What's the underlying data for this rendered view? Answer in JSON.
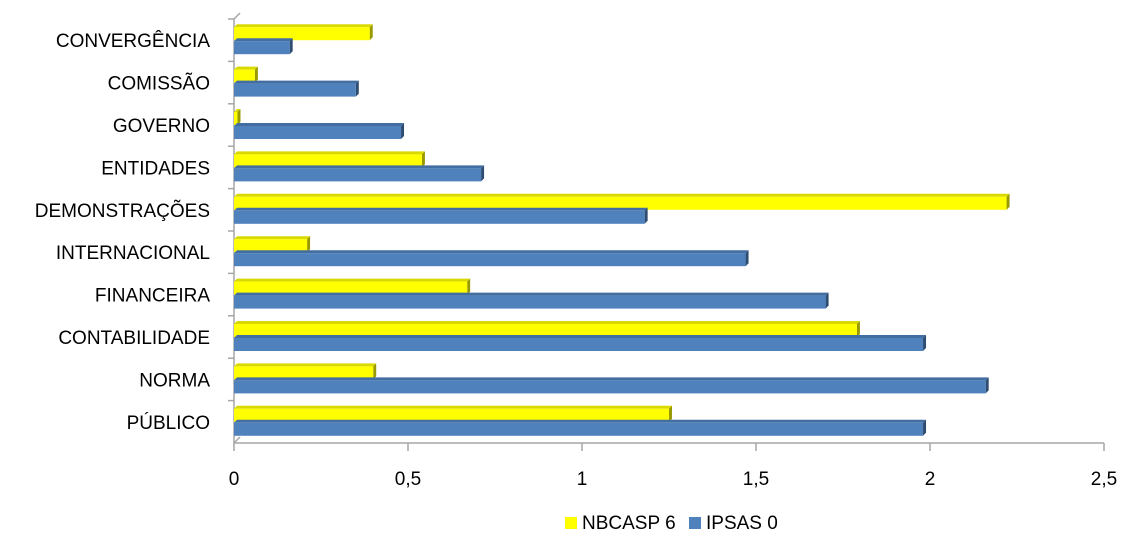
{
  "chart_data": {
    "type": "bar",
    "orientation": "horizontal",
    "title": "",
    "xlabel": "",
    "ylabel": "",
    "xlim": [
      0,
      2.5
    ],
    "x_ticks": [
      "0",
      "0,5",
      "1",
      "1,5",
      "2",
      "2,5"
    ],
    "x_tick_values": [
      0,
      0.5,
      1,
      1.5,
      2,
      2.5
    ],
    "grid": false,
    "legend_position": "bottom",
    "categories": [
      "CONVERGÊNCIA",
      "COMISSÃO",
      "GOVERNO",
      "ENTIDADES",
      "DEMONSTRAÇÕES",
      "INTERNACIONAL",
      "FINANCEIRA",
      "CONTABILIDADE",
      "NORMA",
      "PÚBLICO"
    ],
    "series": [
      {
        "name": "NBCASP 6",
        "color": "#ffff00",
        "values": [
          0.39,
          0.06,
          0.01,
          0.54,
          2.22,
          0.21,
          0.67,
          1.79,
          0.4,
          1.25
        ]
      },
      {
        "name": "IPSAS 0",
        "color": "#4f81bd",
        "values": [
          0.16,
          0.35,
          0.48,
          0.71,
          1.18,
          1.47,
          1.7,
          1.98,
          2.16,
          1.98
        ]
      }
    ]
  }
}
